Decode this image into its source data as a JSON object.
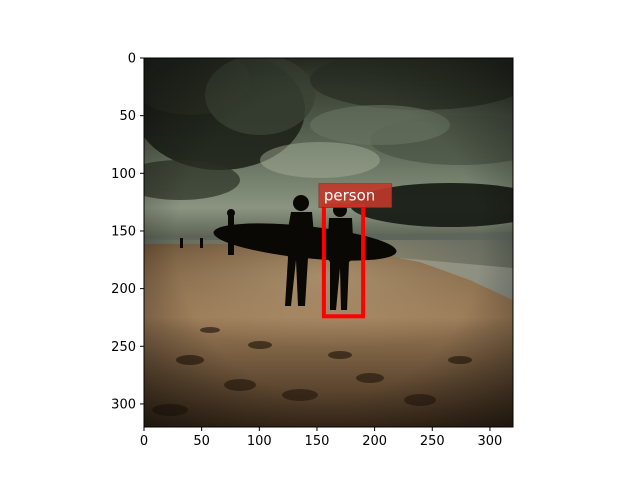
{
  "image": {
    "description_scene": "dark dramatic beach scene with storm clouds and silhouetted surfers",
    "width": 320,
    "height": 320
  },
  "axes": {
    "x_ticks": [
      "0",
      "50",
      "100",
      "150",
      "200",
      "250",
      "300"
    ],
    "y_ticks": [
      "0",
      "50",
      "100",
      "150",
      "200",
      "250",
      "300"
    ]
  },
  "detections": [
    {
      "label": "person",
      "x_min": 156,
      "y_min": 128,
      "x_max": 190,
      "y_max": 224,
      "box_color": "#ff0000",
      "label_bg_color": "#c0392b"
    }
  ],
  "colors": {
    "sky_dark": "#1c2018",
    "sky_light": "#8a9480",
    "sand_dark": "#3a2a1a",
    "sand_light": "#a08060",
    "sea": "#6a7268",
    "silhouette": "#0a0805"
  }
}
